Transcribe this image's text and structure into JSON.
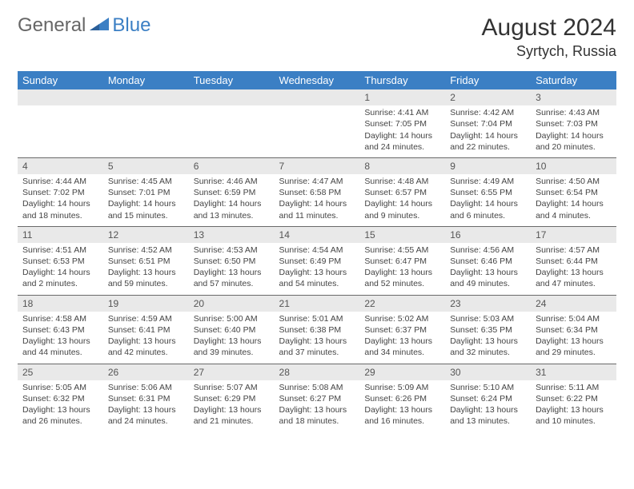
{
  "brand": {
    "part1": "General",
    "part2": "Blue"
  },
  "title": "August 2024",
  "location": "Syrtych, Russia",
  "colors": {
    "header_bg": "#3b7fc4",
    "header_text": "#ffffff",
    "daynum_bg": "#e9e9e9",
    "row_border": "#6a6a6a",
    "body_text": "#444444",
    "logo_gray": "#666666",
    "logo_blue": "#3b7fc4"
  },
  "weekdays": [
    "Sunday",
    "Monday",
    "Tuesday",
    "Wednesday",
    "Thursday",
    "Friday",
    "Saturday"
  ],
  "weeks": [
    [
      {
        "empty": true
      },
      {
        "empty": true
      },
      {
        "empty": true
      },
      {
        "empty": true
      },
      {
        "n": "1",
        "sunrise": "4:41 AM",
        "sunset": "7:05 PM",
        "daylight": "14 hours and 24 minutes."
      },
      {
        "n": "2",
        "sunrise": "4:42 AM",
        "sunset": "7:04 PM",
        "daylight": "14 hours and 22 minutes."
      },
      {
        "n": "3",
        "sunrise": "4:43 AM",
        "sunset": "7:03 PM",
        "daylight": "14 hours and 20 minutes."
      }
    ],
    [
      {
        "n": "4",
        "sunrise": "4:44 AM",
        "sunset": "7:02 PM",
        "daylight": "14 hours and 18 minutes."
      },
      {
        "n": "5",
        "sunrise": "4:45 AM",
        "sunset": "7:01 PM",
        "daylight": "14 hours and 15 minutes."
      },
      {
        "n": "6",
        "sunrise": "4:46 AM",
        "sunset": "6:59 PM",
        "daylight": "14 hours and 13 minutes."
      },
      {
        "n": "7",
        "sunrise": "4:47 AM",
        "sunset": "6:58 PM",
        "daylight": "14 hours and 11 minutes."
      },
      {
        "n": "8",
        "sunrise": "4:48 AM",
        "sunset": "6:57 PM",
        "daylight": "14 hours and 9 minutes."
      },
      {
        "n": "9",
        "sunrise": "4:49 AM",
        "sunset": "6:55 PM",
        "daylight": "14 hours and 6 minutes."
      },
      {
        "n": "10",
        "sunrise": "4:50 AM",
        "sunset": "6:54 PM",
        "daylight": "14 hours and 4 minutes."
      }
    ],
    [
      {
        "n": "11",
        "sunrise": "4:51 AM",
        "sunset": "6:53 PM",
        "daylight": "14 hours and 2 minutes."
      },
      {
        "n": "12",
        "sunrise": "4:52 AM",
        "sunset": "6:51 PM",
        "daylight": "13 hours and 59 minutes."
      },
      {
        "n": "13",
        "sunrise": "4:53 AM",
        "sunset": "6:50 PM",
        "daylight": "13 hours and 57 minutes."
      },
      {
        "n": "14",
        "sunrise": "4:54 AM",
        "sunset": "6:49 PM",
        "daylight": "13 hours and 54 minutes."
      },
      {
        "n": "15",
        "sunrise": "4:55 AM",
        "sunset": "6:47 PM",
        "daylight": "13 hours and 52 minutes."
      },
      {
        "n": "16",
        "sunrise": "4:56 AM",
        "sunset": "6:46 PM",
        "daylight": "13 hours and 49 minutes."
      },
      {
        "n": "17",
        "sunrise": "4:57 AM",
        "sunset": "6:44 PM",
        "daylight": "13 hours and 47 minutes."
      }
    ],
    [
      {
        "n": "18",
        "sunrise": "4:58 AM",
        "sunset": "6:43 PM",
        "daylight": "13 hours and 44 minutes."
      },
      {
        "n": "19",
        "sunrise": "4:59 AM",
        "sunset": "6:41 PM",
        "daylight": "13 hours and 42 minutes."
      },
      {
        "n": "20",
        "sunrise": "5:00 AM",
        "sunset": "6:40 PM",
        "daylight": "13 hours and 39 minutes."
      },
      {
        "n": "21",
        "sunrise": "5:01 AM",
        "sunset": "6:38 PM",
        "daylight": "13 hours and 37 minutes."
      },
      {
        "n": "22",
        "sunrise": "5:02 AM",
        "sunset": "6:37 PM",
        "daylight": "13 hours and 34 minutes."
      },
      {
        "n": "23",
        "sunrise": "5:03 AM",
        "sunset": "6:35 PM",
        "daylight": "13 hours and 32 minutes."
      },
      {
        "n": "24",
        "sunrise": "5:04 AM",
        "sunset": "6:34 PM",
        "daylight": "13 hours and 29 minutes."
      }
    ],
    [
      {
        "n": "25",
        "sunrise": "5:05 AM",
        "sunset": "6:32 PM",
        "daylight": "13 hours and 26 minutes."
      },
      {
        "n": "26",
        "sunrise": "5:06 AM",
        "sunset": "6:31 PM",
        "daylight": "13 hours and 24 minutes."
      },
      {
        "n": "27",
        "sunrise": "5:07 AM",
        "sunset": "6:29 PM",
        "daylight": "13 hours and 21 minutes."
      },
      {
        "n": "28",
        "sunrise": "5:08 AM",
        "sunset": "6:27 PM",
        "daylight": "13 hours and 18 minutes."
      },
      {
        "n": "29",
        "sunrise": "5:09 AM",
        "sunset": "6:26 PM",
        "daylight": "13 hours and 16 minutes."
      },
      {
        "n": "30",
        "sunrise": "5:10 AM",
        "sunset": "6:24 PM",
        "daylight": "13 hours and 13 minutes."
      },
      {
        "n": "31",
        "sunrise": "5:11 AM",
        "sunset": "6:22 PM",
        "daylight": "13 hours and 10 minutes."
      }
    ]
  ],
  "labels": {
    "sunrise": "Sunrise: ",
    "sunset": "Sunset: ",
    "daylight": "Daylight: "
  }
}
